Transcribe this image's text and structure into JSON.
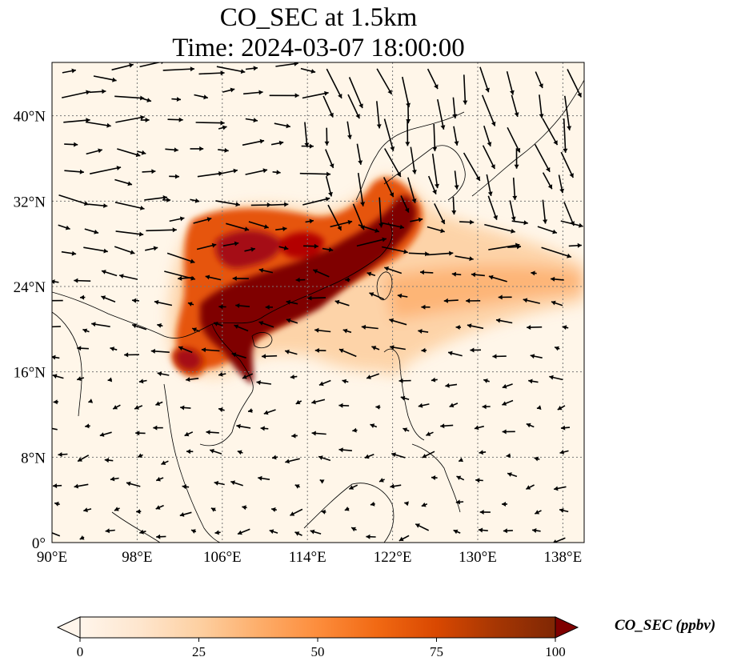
{
  "title": {
    "line1": "CO_SEC at 1.5km",
    "line2": "Time: 2024-03-07 18:00:00"
  },
  "map": {
    "extent": {
      "lon": [
        90,
        140
      ],
      "lat": [
        0,
        45
      ]
    },
    "lon_ticks": [
      {
        "value": 90,
        "label": "90°E"
      },
      {
        "value": 98,
        "label": "98°E"
      },
      {
        "value": 106,
        "label": "106°E"
      },
      {
        "value": 114,
        "label": "114°E"
      },
      {
        "value": 122,
        "label": "122°E"
      },
      {
        "value": 130,
        "label": "130°E"
      },
      {
        "value": 138,
        "label": "138°E"
      }
    ],
    "lat_ticks": [
      {
        "value": 0,
        "label": "0°"
      },
      {
        "value": 8,
        "label": "8°N"
      },
      {
        "value": 16,
        "label": "16°N"
      },
      {
        "value": 24,
        "label": "24°N"
      },
      {
        "value": 32,
        "label": "32°N"
      },
      {
        "value": 40,
        "label": "40°N"
      }
    ],
    "gridlines": true,
    "background_color": "#fff6e9",
    "field": "CO_SEC",
    "plume_regions": [
      {
        "lon": 106,
        "lat": 20,
        "value": 100
      },
      {
        "lon": 109,
        "lat": 22,
        "value": 100
      },
      {
        "lon": 113,
        "lat": 24,
        "value": 100
      },
      {
        "lon": 117,
        "lat": 26,
        "value": 100
      },
      {
        "lon": 121,
        "lat": 28,
        "value": 100
      },
      {
        "lon": 124,
        "lat": 31,
        "value": 95
      },
      {
        "lon": 104,
        "lat": 26,
        "value": 85
      },
      {
        "lon": 110,
        "lat": 29,
        "value": 80
      },
      {
        "lon": 103,
        "lat": 17,
        "value": 85
      },
      {
        "lon": 120,
        "lat": 32,
        "value": 75
      },
      {
        "lon": 130,
        "lat": 23,
        "value": 40
      },
      {
        "lon": 136,
        "lat": 24,
        "value": 30
      }
    ]
  },
  "colorbar": {
    "min": 0,
    "max": 100,
    "ticks": [
      "0",
      "25",
      "50",
      "75",
      "100"
    ],
    "tick_values": [
      0,
      25,
      50,
      75,
      100
    ],
    "label": "CO_SEC (ppbv)",
    "colormap": [
      "#fff5eb",
      "#fee6ce",
      "#fdd0a2",
      "#fdae6b",
      "#fd8d3c",
      "#f16913",
      "#d94801",
      "#a63603",
      "#7f2704"
    ],
    "extend": "both"
  }
}
